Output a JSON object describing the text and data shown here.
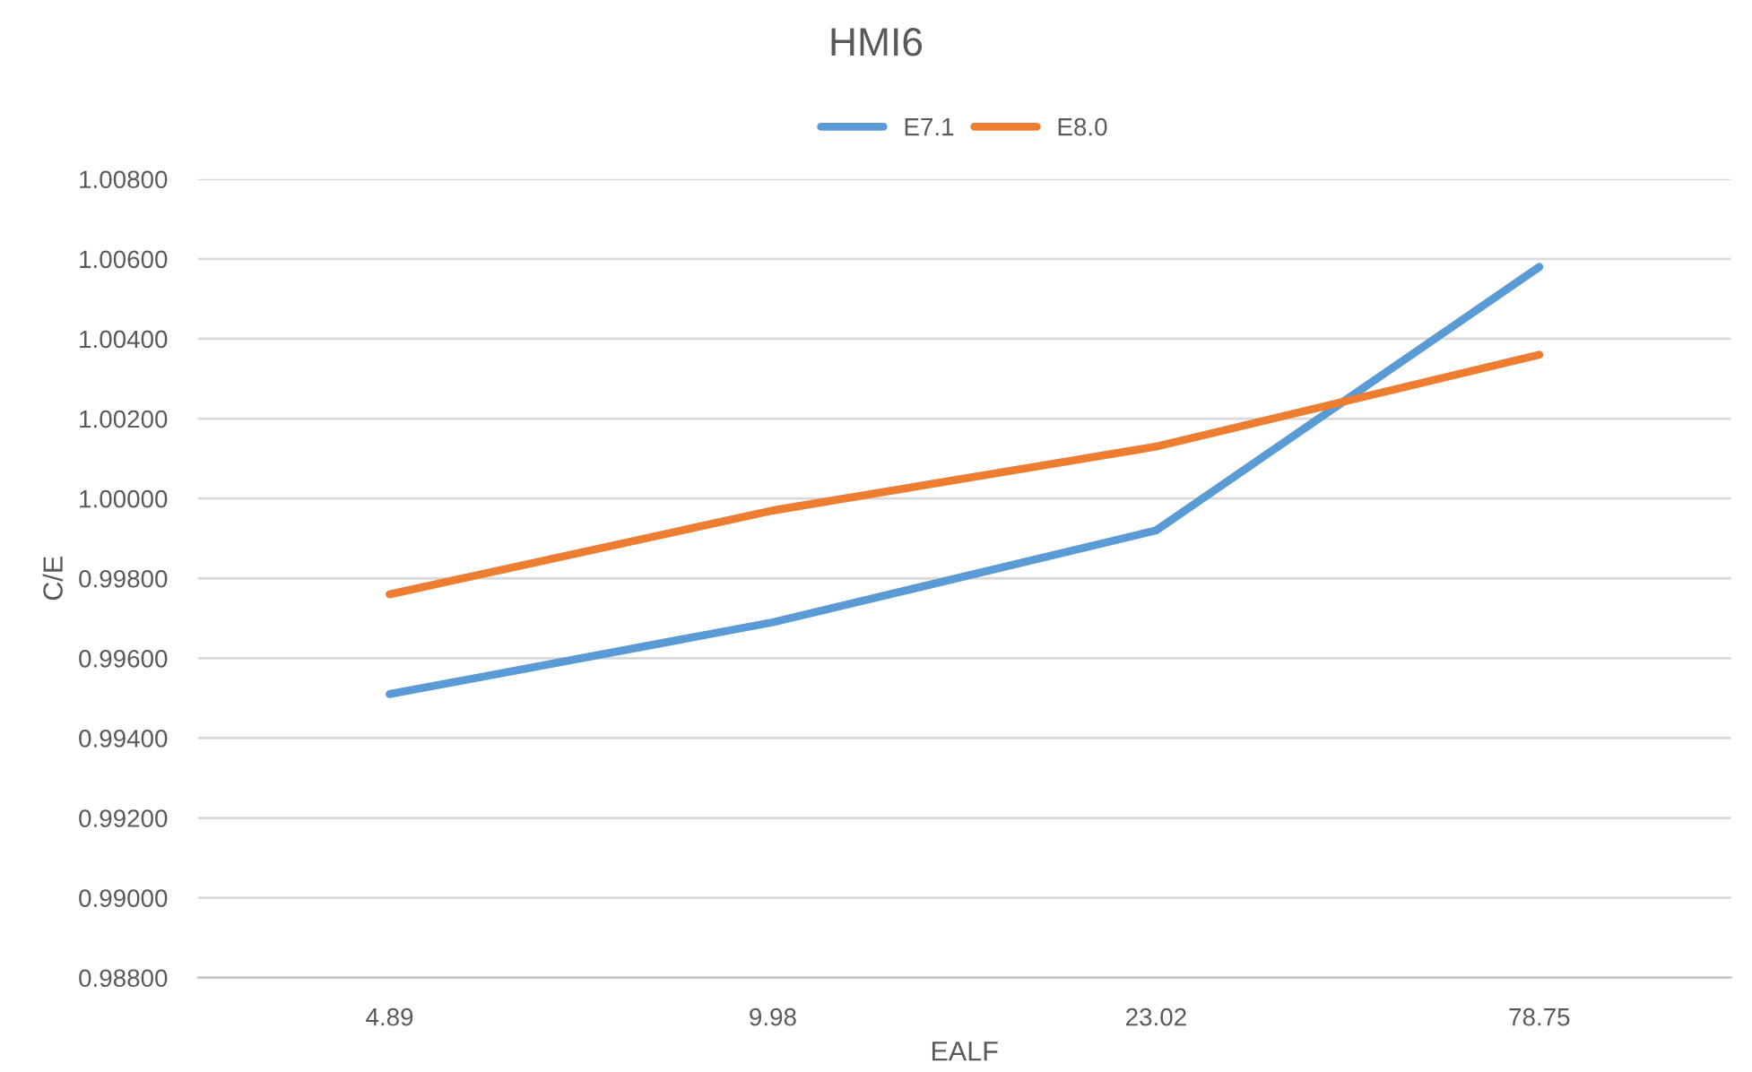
{
  "chart_data": {
    "type": "line",
    "title": "HMI6",
    "xlabel": "EALF",
    "ylabel": "C/E",
    "categories": [
      "4.89",
      "9.98",
      "23.02",
      "78.75"
    ],
    "series": [
      {
        "name": "E7.1",
        "color": "#5b9bd5",
        "values": [
          0.9951,
          0.9969,
          0.9992,
          1.0058
        ]
      },
      {
        "name": "E8.0",
        "color": "#ed7d31",
        "values": [
          0.9976,
          0.9997,
          1.0013,
          1.0036
        ]
      }
    ],
    "ylim": [
      0.988,
      1.008
    ],
    "yticks": [
      {
        "value": 0.988,
        "label": "0.98800"
      },
      {
        "value": 0.99,
        "label": "0.99000"
      },
      {
        "value": 0.992,
        "label": "0.99200"
      },
      {
        "value": 0.994,
        "label": "0.99400"
      },
      {
        "value": 0.996,
        "label": "0.99600"
      },
      {
        "value": 0.998,
        "label": "0.99800"
      },
      {
        "value": 1.0,
        "label": "1.00000"
      },
      {
        "value": 1.002,
        "label": "1.00200"
      },
      {
        "value": 1.004,
        "label": "1.00400"
      },
      {
        "value": 1.006,
        "label": "1.00600"
      },
      {
        "value": 1.008,
        "label": "1.00800"
      }
    ],
    "grid": "y",
    "legend": "top",
    "marker": "none",
    "line_style": "solid"
  }
}
